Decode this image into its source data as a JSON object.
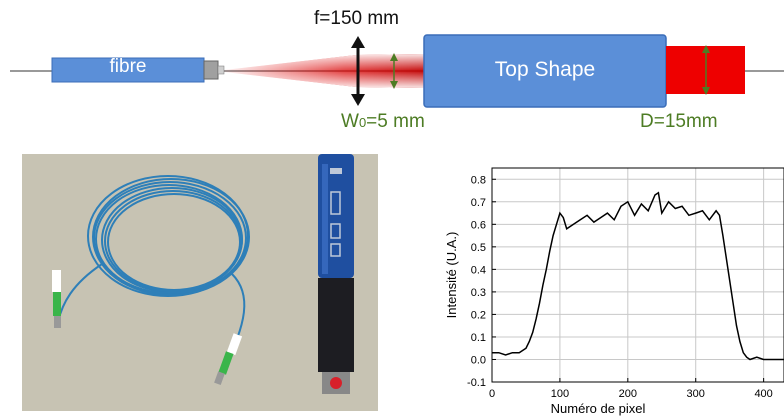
{
  "diagram": {
    "fibre_label": "fibre",
    "shaper_label": "Top Shape",
    "focal_label": "f=150 mm",
    "waist_label_prefix": "W",
    "waist_label_sub": "0",
    "waist_label_suffix": "=5 mm",
    "output_label": "D=15mm",
    "colors": {
      "box_blue": "#5b8fd8",
      "beam_red": "#e00000",
      "annotation_green": "#4d7c24"
    }
  },
  "photo": {
    "description_icon": "fibre-coil-and-collimator-icon"
  },
  "chart_data": {
    "type": "line",
    "xlabel": "Numéro de pixel",
    "ylabel": "Intensité (U.A.)",
    "xlim": [
      0,
      430
    ],
    "ylim": [
      -0.1,
      0.85
    ],
    "xticks": [
      0,
      100,
      200,
      300,
      400
    ],
    "yticks": [
      -0.1,
      0.0,
      0.1,
      0.2,
      0.3,
      0.4,
      0.5,
      0.6,
      0.7,
      0.8
    ],
    "ytick_labels": [
      "-0.1",
      "0.0",
      "0.1",
      "0.2",
      "0.3",
      "0.4",
      "0.5",
      "0.6",
      "0.7",
      "0.8"
    ],
    "grid": true,
    "series": [
      {
        "x": [
          0,
          10,
          20,
          30,
          40,
          50,
          55,
          60,
          65,
          70,
          75,
          80,
          85,
          90,
          95,
          100,
          105,
          110,
          120,
          130,
          140,
          150,
          160,
          170,
          180,
          190,
          200,
          210,
          220,
          230,
          240,
          245,
          250,
          260,
          270,
          280,
          290,
          300,
          310,
          320,
          330,
          335,
          340,
          345,
          350,
          355,
          360,
          365,
          370,
          375,
          380,
          390,
          400,
          410,
          430
        ],
        "y": [
          0.03,
          0.03,
          0.02,
          0.03,
          0.03,
          0.05,
          0.08,
          0.12,
          0.18,
          0.25,
          0.33,
          0.4,
          0.48,
          0.55,
          0.6,
          0.65,
          0.63,
          0.58,
          0.6,
          0.62,
          0.64,
          0.61,
          0.63,
          0.65,
          0.62,
          0.68,
          0.7,
          0.64,
          0.69,
          0.66,
          0.73,
          0.74,
          0.65,
          0.7,
          0.67,
          0.68,
          0.64,
          0.65,
          0.66,
          0.62,
          0.66,
          0.64,
          0.55,
          0.45,
          0.35,
          0.25,
          0.15,
          0.08,
          0.03,
          0.01,
          0.0,
          0.01,
          0.0,
          0.0,
          0.0
        ]
      }
    ]
  }
}
